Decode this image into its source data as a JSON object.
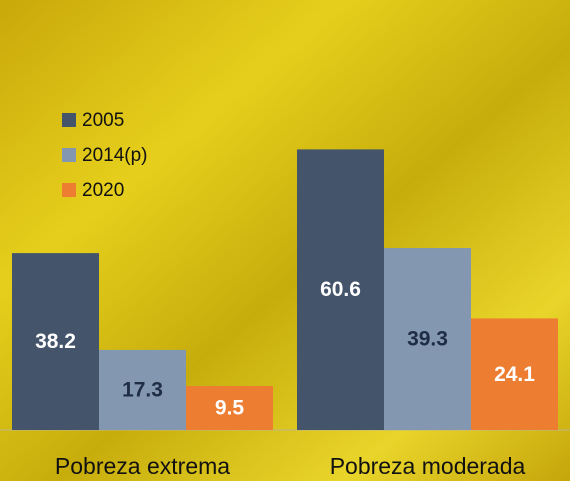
{
  "chart_data": {
    "type": "bar",
    "categories": [
      "Pobreza extrema",
      "Pobreza moderada"
    ],
    "series": [
      {
        "name": "2005",
        "color": "#44546a",
        "label_color": "#ffffff",
        "values": [
          38.2,
          60.6
        ]
      },
      {
        "name": "2014(p)",
        "color": "#8497b0",
        "label_color": "#1f2d44",
        "values": [
          17.3,
          39.3
        ]
      },
      {
        "name": "2020",
        "color": "#ed7d31",
        "label_color": "#ffffff",
        "values": [
          9.5,
          24.1
        ]
      }
    ],
    "ylim": [
      0,
      92
    ],
    "legend": "upper left"
  }
}
